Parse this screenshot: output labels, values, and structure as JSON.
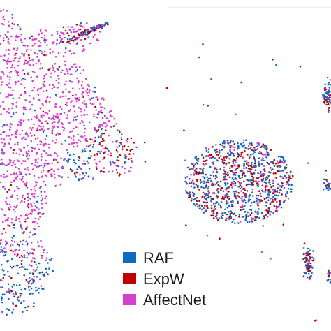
{
  "chart_data": {
    "type": "scatter",
    "title": "",
    "xlabel": "",
    "ylabel": "",
    "grid": false,
    "legend_position": "bottom-center",
    "series": [
      {
        "name": "RAF",
        "color": "#0f6bc0"
      },
      {
        "name": "ExpW",
        "color": "#c00000"
      },
      {
        "name": "AffectNet",
        "color": "#d43fcf"
      }
    ]
  }
}
